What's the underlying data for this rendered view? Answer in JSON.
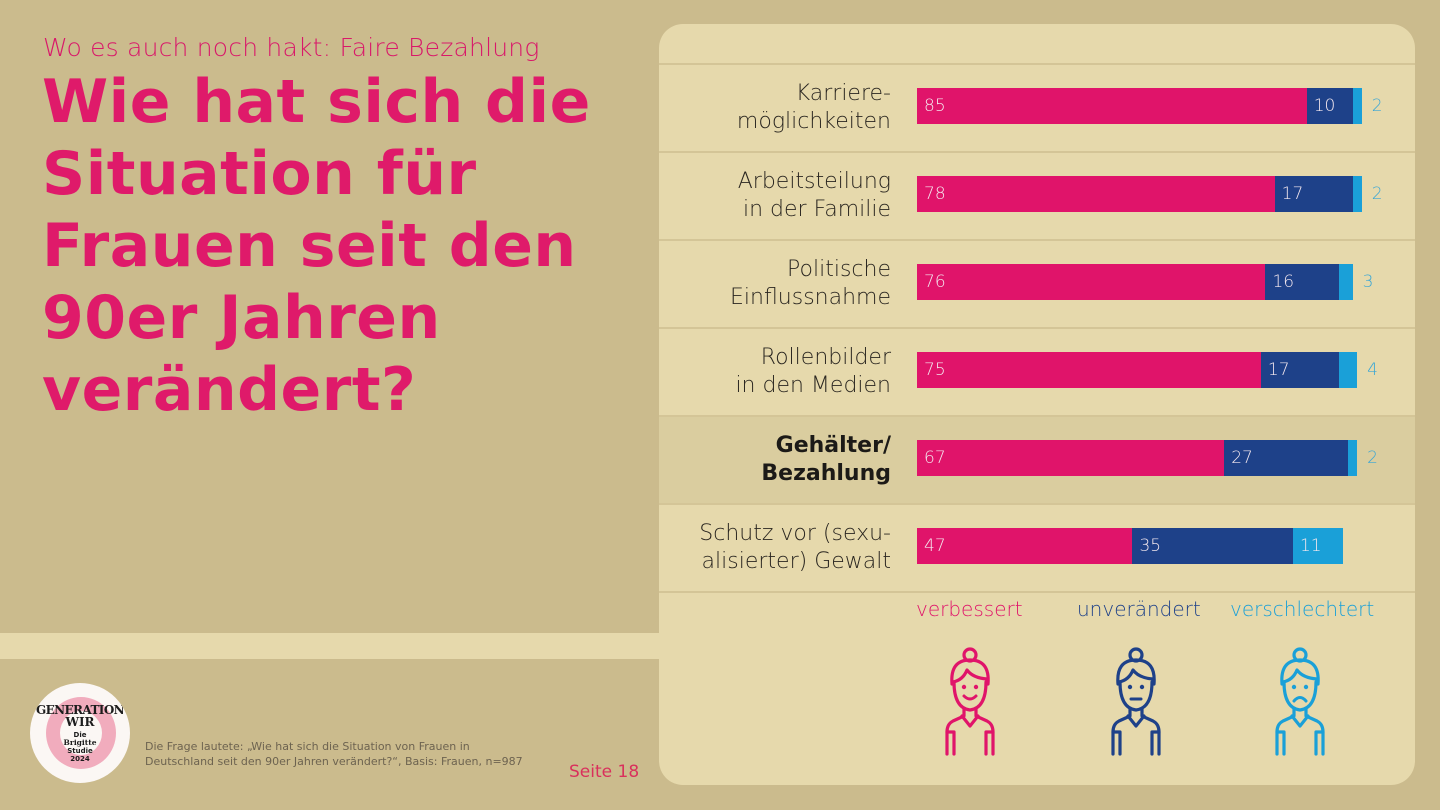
{
  "header": {
    "kicker": "Wo es auch noch hakt: Faire Bezahlung",
    "headline": "Wie hat sich die Situation für Frauen seit den 90er Jahren verändert?"
  },
  "logo": {
    "line1": "GENERATION",
    "line2": "WIR",
    "line3": "Die",
    "line4": "Brigitte",
    "line5": "Studie",
    "line6": "2024"
  },
  "footer": {
    "footnote": "Die Frage lautete: „Wie hat sich die Situation von Frauen in Deutschland seit den 90er Jahren verändert?“, Basis: Frauen, n=987",
    "page": "Seite 18"
  },
  "colors": {
    "verbessert": "#e0146a",
    "unveraendert": "#1e4189",
    "verschlechtert": "#1aa0d8",
    "outside_label": "#38a6d6"
  },
  "chart_data": {
    "type": "bar",
    "orientation": "horizontal",
    "stacked": true,
    "title": "Wie hat sich die Situation für Frauen seit den 90er Jahren verändert?",
    "unit": "%",
    "categories": [
      "Karriere-\nmöglichkeiten",
      "Arbeitsteilung\nin der Familie",
      "Politische\nEinflussnahme",
      "Rollenbilder\nin den Medien",
      "Gehälter/\nBezahlung",
      "Schutz vor (sexu-\nalisierter) Gewalt"
    ],
    "highlighted_category": "Gehälter/\nBezahlung",
    "series": [
      {
        "name": "verbessert",
        "values": [
          85,
          78,
          76,
          75,
          67,
          47
        ]
      },
      {
        "name": "unverändert",
        "values": [
          10,
          17,
          16,
          17,
          27,
          35
        ]
      },
      {
        "name": "verschlechtert",
        "values": [
          2,
          2,
          3,
          4,
          2,
          11
        ]
      }
    ],
    "xlim": [
      0,
      100
    ],
    "grid": false,
    "legend": {
      "placement": "bottom",
      "entries": [
        {
          "label": "verbessert",
          "icon": "happy-woman-icon"
        },
        {
          "label": "unverändert",
          "icon": "neutral-woman-icon"
        },
        {
          "label": "verschlechtert",
          "icon": "sad-woman-icon"
        }
      ]
    }
  }
}
